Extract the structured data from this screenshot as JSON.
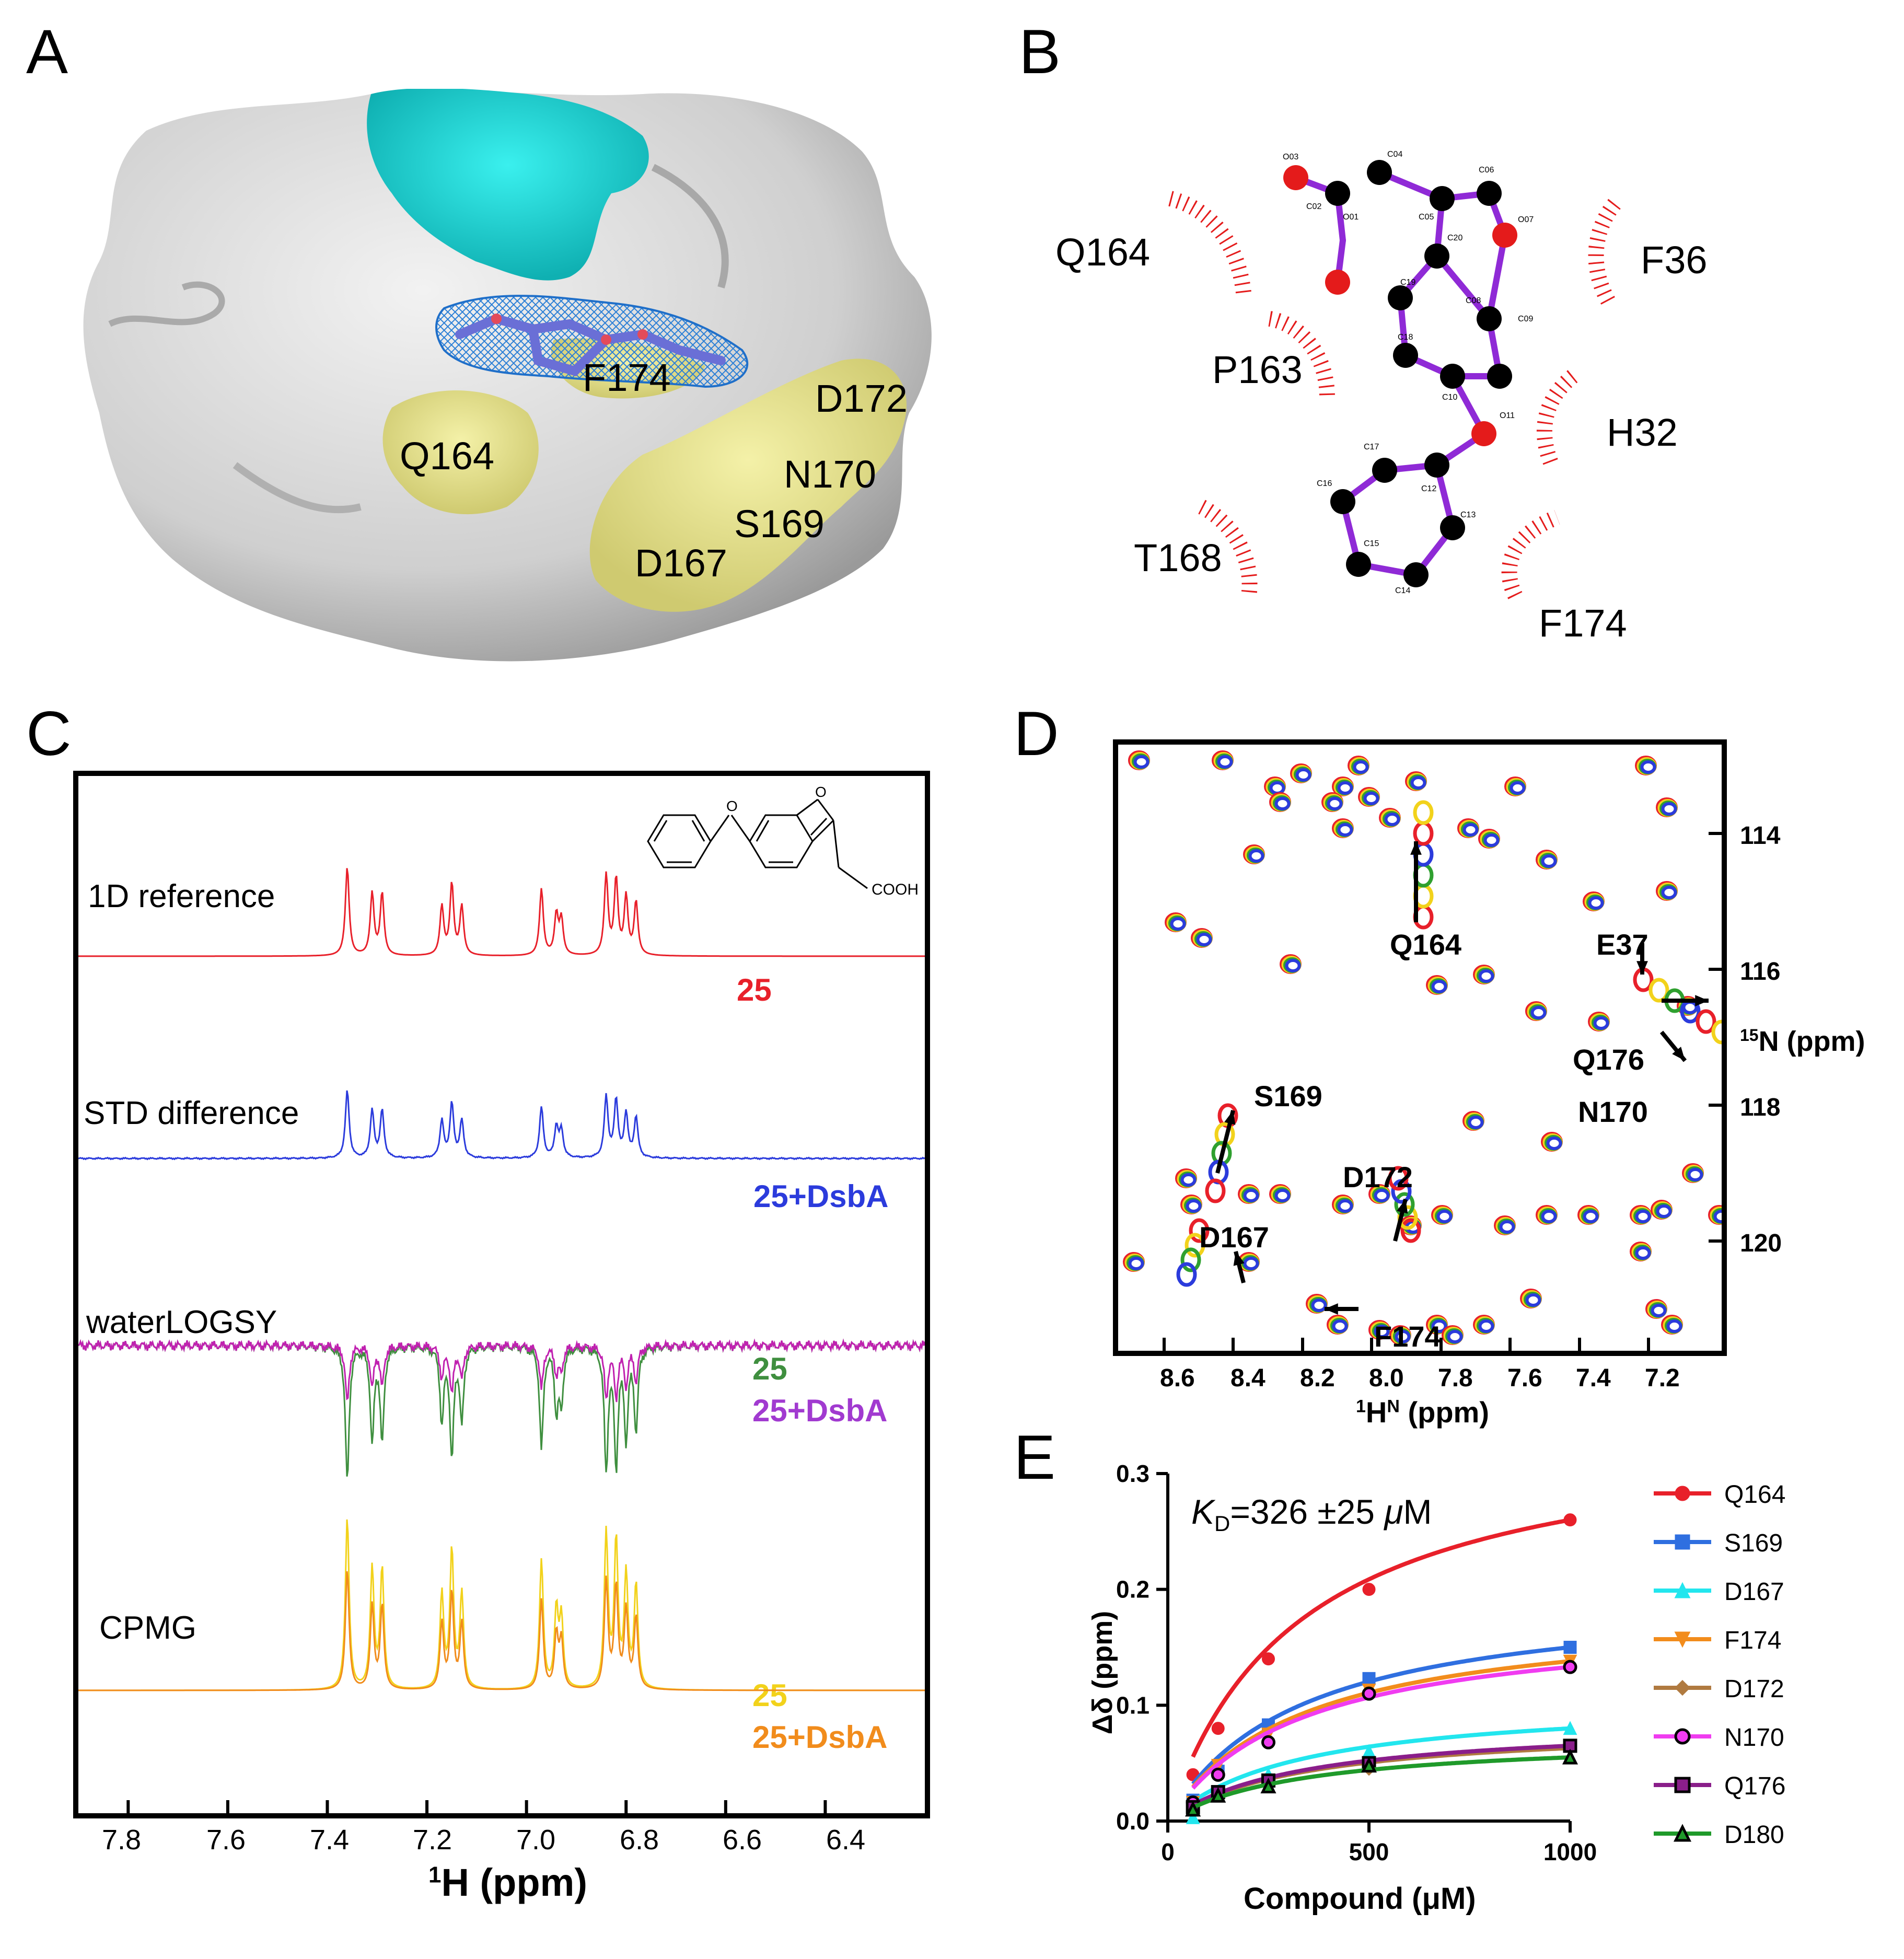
{
  "panels": {
    "A": {
      "letter": "A",
      "residues": [
        "F174",
        "D172",
        "Q164",
        "N170",
        "S169",
        "D167"
      ]
    },
    "B": {
      "letter": "B",
      "residues": [
        "Q164",
        "F36",
        "P163",
        "H32",
        "T168",
        "F174"
      ],
      "atoms": [
        "O03",
        "C04",
        "C06",
        "C02",
        "O01",
        "C05",
        "C20",
        "O07",
        "C19",
        "C08",
        "C09",
        "C18",
        "C10",
        "O11",
        "C17",
        "C12",
        "C16",
        "C13",
        "C15",
        "C14"
      ]
    },
    "C": {
      "letter": "C",
      "traces": [
        {
          "title": "1D reference",
          "sample": "25",
          "color": "#e8202a"
        },
        {
          "title": "STD difference",
          "sample": "25+DsbA",
          "color": "#2b3bdc"
        },
        {
          "title": "waterLOGSY",
          "sample": "25",
          "sample2": "25+DsbA",
          "color": "#3f8f3f",
          "color2": "#c021b0"
        },
        {
          "title": "CPMG",
          "sample": "25",
          "sample2": "25+DsbA",
          "color": "#f2d21b",
          "color2": "#f18c1c"
        }
      ],
      "structure_label": "COOH",
      "axis": {
        "label_sup": "1",
        "label_main": "H (ppm)",
        "ticks": [
          "7.8",
          "7.6",
          "7.4",
          "7.2",
          "7.0",
          "6.8",
          "6.6",
          "6.4"
        ]
      }
    },
    "D": {
      "letter": "D",
      "labels": [
        "Q164",
        "E37",
        "Q176",
        "N170",
        "S169",
        "D172",
        "D167",
        "F174"
      ],
      "x_axis": {
        "sup": "1",
        "main": "H",
        "sup2": "N",
        "rest": " (ppm)",
        "ticks": [
          "8.6",
          "8.4",
          "8.2",
          "8.0",
          "7.8",
          "7.6",
          "7.4",
          "7.2"
        ]
      },
      "y_axis": {
        "sup": "15",
        "main": "N (ppm)",
        "ticks": [
          "114",
          "116",
          "118",
          "120"
        ]
      }
    },
    "E": {
      "letter": "E",
      "kd_italic": "K",
      "kd_sub": "D",
      "kd_rest": "=326 ±25 ",
      "kd_mu": "μ",
      "kd_unit": "M",
      "ylabel": "Δδ (ppm)",
      "xlabel": "Compound (μM)"
    }
  },
  "chart_data": {
    "type": "scatter",
    "title": "",
    "xlabel": "Compound (μM)",
    "ylabel": "Δδ (ppm)",
    "xlim": [
      0,
      1000
    ],
    "ylim": [
      0,
      0.3
    ],
    "xticks": [
      "0",
      "500",
      "1000"
    ],
    "yticks": [
      "0.0",
      "0.1",
      "0.2",
      "0.3"
    ],
    "legend_position": "right",
    "kd_uM": 326,
    "x": [
      62.5,
      125,
      250,
      500,
      1000
    ],
    "series": [
      {
        "name": "Q164",
        "color": "#e8202a",
        "marker": "circle",
        "values": [
          0.04,
          0.08,
          0.14,
          0.2,
          0.26
        ]
      },
      {
        "name": "S169",
        "color": "#2f6fe0",
        "marker": "square",
        "values": [
          0.018,
          0.043,
          0.083,
          0.123,
          0.15
        ]
      },
      {
        "name": "D167",
        "color": "#22e6ee",
        "marker": "triangle",
        "values": [
          0.003,
          0.022,
          0.04,
          0.06,
          0.08
        ]
      },
      {
        "name": "F174",
        "color": "#f28c1c",
        "marker": "triangle-down",
        "values": [
          0.016,
          0.048,
          0.075,
          0.113,
          0.138
        ]
      },
      {
        "name": "D172",
        "color": "#b07a40",
        "marker": "diamond",
        "values": [
          0.014,
          0.025,
          0.033,
          0.045,
          0.063
        ]
      },
      {
        "name": "N170",
        "color": "#f03cf0",
        "marker": "circle-open",
        "values": [
          0.016,
          0.04,
          0.068,
          0.11,
          0.133
        ]
      },
      {
        "name": "Q176",
        "color": "#8a1e8a",
        "marker": "square-open",
        "values": [
          0.012,
          0.025,
          0.035,
          0.05,
          0.065
        ]
      },
      {
        "name": "D180",
        "color": "#1f9a2a",
        "marker": "triangle-open",
        "values": [
          0.01,
          0.022,
          0.03,
          0.048,
          0.055
        ]
      }
    ]
  }
}
